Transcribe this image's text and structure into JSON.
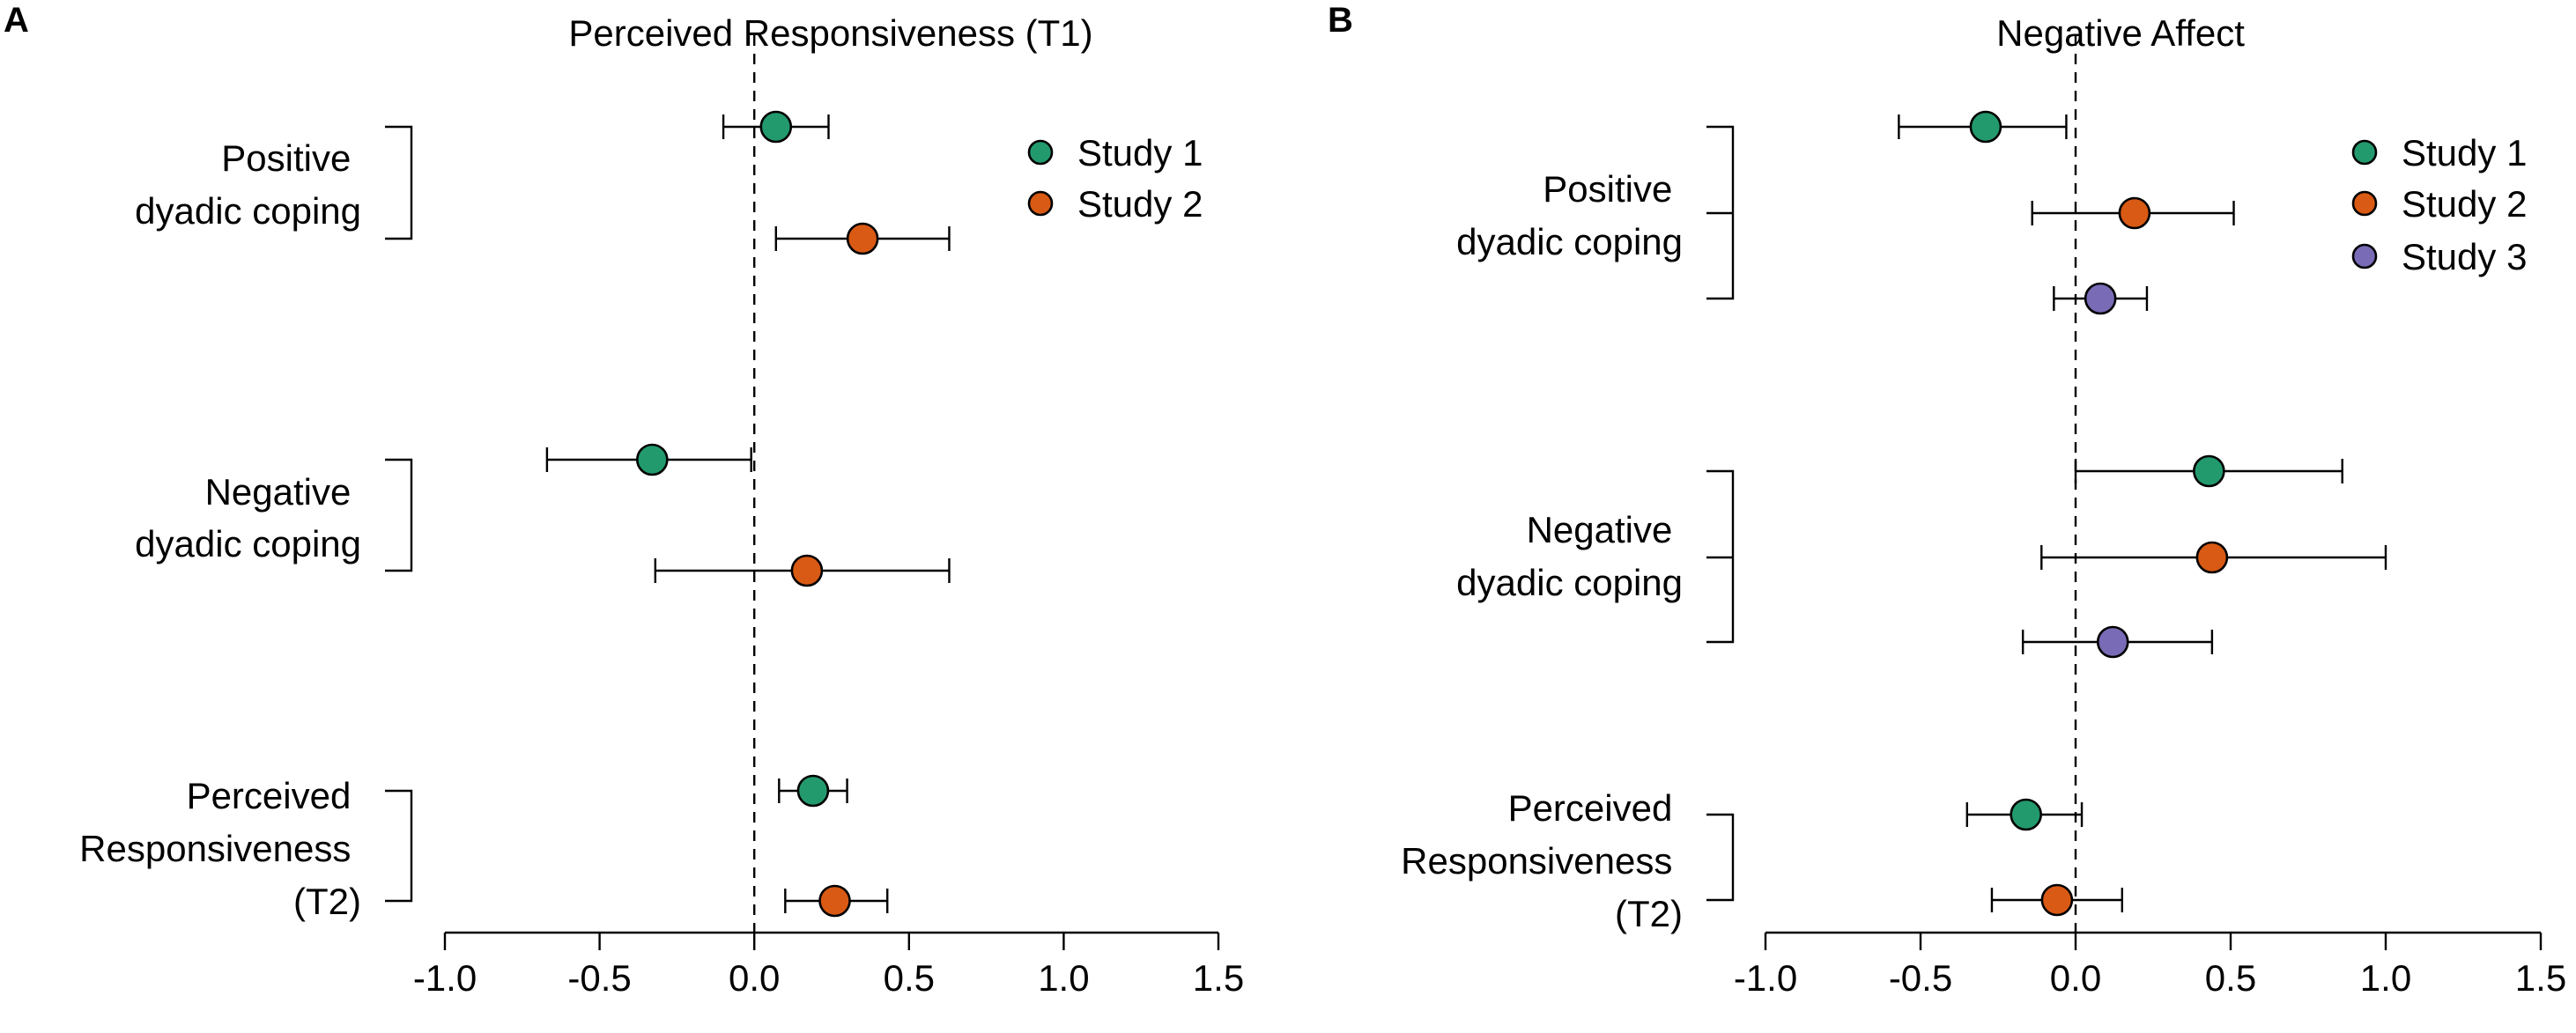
{
  "colors": {
    "Study 1": "#239a6e",
    "Study 2": "#d95a14",
    "Study 3": "#7a6bb6"
  },
  "chart_data": [
    {
      "panel": "A",
      "type": "scatter",
      "title": "Perceived Responsiveness (T1)",
      "xlabel": "",
      "ylabel": "",
      "xlim": [
        -1.0,
        1.5
      ],
      "xticks": [
        "-1.0",
        "-0.5",
        "0.0",
        "0.5",
        "1.0",
        "1.5"
      ],
      "xtick_values": [
        -1.0,
        -0.5,
        0.0,
        0.5,
        1.0,
        1.5
      ],
      "reference_line": 0.0,
      "legend": [
        "Study 1",
        "Study 2"
      ],
      "legend_position": "top-right",
      "groups": [
        {
          "label_lines": [
            "Positive",
            "dyadic coping"
          ],
          "points": [
            {
              "series": "Study 1",
              "estimate": 0.07,
              "lower": -0.1,
              "upper": 0.24
            },
            {
              "series": "Study 2",
              "estimate": 0.35,
              "lower": 0.07,
              "upper": 0.63
            }
          ]
        },
        {
          "label_lines": [
            "Negative",
            "dyadic coping"
          ],
          "points": [
            {
              "series": "Study 1",
              "estimate": -0.33,
              "lower": -0.67,
              "upper": -0.01
            },
            {
              "series": "Study 2",
              "estimate": 0.17,
              "lower": -0.32,
              "upper": 0.63
            }
          ]
        },
        {
          "label_lines": [
            "Perceived",
            "Responsiveness",
            "(T2)"
          ],
          "points": [
            {
              "series": "Study 1",
              "estimate": 0.19,
              "lower": 0.08,
              "upper": 0.3
            },
            {
              "series": "Study 2",
              "estimate": 0.26,
              "lower": 0.1,
              "upper": 0.43
            }
          ]
        }
      ]
    },
    {
      "panel": "B",
      "type": "scatter",
      "title": "Negative Affect",
      "xlabel": "",
      "ylabel": "",
      "xlim": [
        -1.0,
        1.5
      ],
      "xticks": [
        "-1.0",
        "-0.5",
        "0.0",
        "0.5",
        "1.0",
        "1.5"
      ],
      "xtick_values": [
        -1.0,
        -0.5,
        0.0,
        0.5,
        1.0,
        1.5
      ],
      "reference_line": 0.0,
      "legend": [
        "Study 1",
        "Study 2",
        "Study 3"
      ],
      "legend_position": "top-right",
      "groups": [
        {
          "label_lines": [
            "Positive",
            "dyadic coping"
          ],
          "points": [
            {
              "series": "Study 1",
              "estimate": -0.29,
              "lower": -0.57,
              "upper": -0.03
            },
            {
              "series": "Study 2",
              "estimate": 0.19,
              "lower": -0.14,
              "upper": 0.51
            },
            {
              "series": "Study 3",
              "estimate": 0.08,
              "lower": -0.07,
              "upper": 0.23
            }
          ]
        },
        {
          "label_lines": [
            "Negative",
            "dyadic coping"
          ],
          "points": [
            {
              "series": "Study 1",
              "estimate": 0.43,
              "lower": 0.0,
              "upper": 0.86
            },
            {
              "series": "Study 2",
              "estimate": 0.44,
              "lower": -0.11,
              "upper": 1.0
            },
            {
              "series": "Study 3",
              "estimate": 0.12,
              "lower": -0.17,
              "upper": 0.44
            }
          ]
        },
        {
          "label_lines": [
            "Perceived",
            "Responsiveness",
            "(T2)"
          ],
          "points": [
            {
              "series": "Study 1",
              "estimate": -0.16,
              "lower": -0.35,
              "upper": 0.02
            },
            {
              "series": "Study 2",
              "estimate": -0.06,
              "lower": -0.27,
              "upper": 0.15
            }
          ]
        }
      ]
    }
  ]
}
